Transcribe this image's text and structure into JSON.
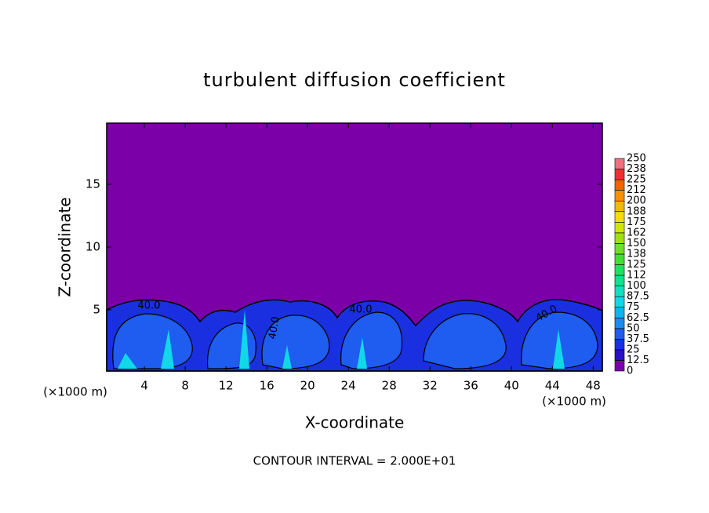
{
  "chart_data": {
    "type": "contour",
    "title": "turbulent diffusion coefficient",
    "xlabel": "X-coordinate",
    "ylabel": "Z-coordinate",
    "x_unit_label_left": "(×1000 m)",
    "x_unit_label_right": "(×1000 m)",
    "footer": "CONTOUR INTERVAL = 2.000E+01",
    "contour_labels": [
      "40.0",
      "40.0",
      "40.0",
      "40.0"
    ],
    "xlim": [
      0.3,
      48.9
    ],
    "xticks": [
      4,
      8,
      12,
      16,
      20,
      24,
      28,
      32,
      36,
      40,
      44,
      48
    ],
    "ylim": [
      0.125,
      19.875
    ],
    "yticks": [
      5,
      10,
      15
    ],
    "field_color": "#7b00a8",
    "colorbar": {
      "levels": [
        0,
        12.5,
        25,
        37.5,
        50,
        62.5,
        75,
        87.5,
        100,
        {
          "value": 112.5,
          "label": "112"
        },
        125,
        {
          "value": 137.5,
          "label": "138"
        },
        150,
        {
          "value": 162.5,
          "label": "162"
        },
        175,
        {
          "value": 187.5,
          "label": "188"
        },
        200,
        {
          "value": 212.5,
          "label": "212"
        },
        225,
        {
          "value": 237.5,
          "label": "238"
        },
        250
      ],
      "colors": [
        "#7b00a8",
        "#2a10c8",
        "#1a30e0",
        "#1f5cf0",
        "#1a8cf0",
        "#10b4f0",
        "#10d8e8",
        "#10e0c0",
        "#10e090",
        "#20e060",
        "#40e030",
        "#70e020",
        "#a0e010",
        "#d0e800",
        "#f0e000",
        "#f8b800",
        "#f89000",
        "#f86000",
        "#f03030",
        "#f07080"
      ]
    }
  }
}
